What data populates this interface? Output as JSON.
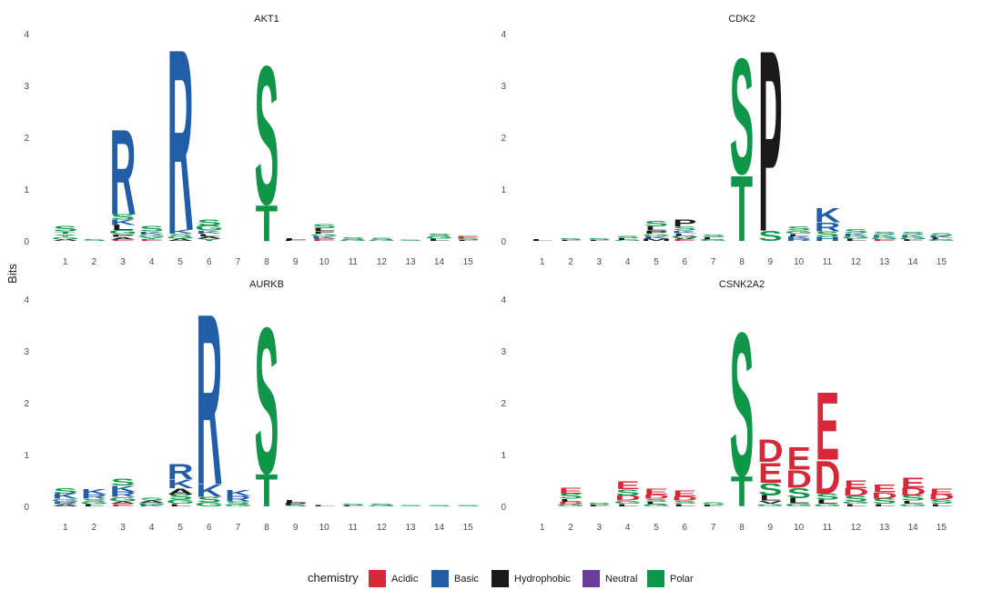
{
  "chart_data": {
    "type": "sequence-logo",
    "ylabel": "Bits",
    "xlabel": "",
    "ylim": [
      0,
      4
    ],
    "y_ticks": [
      0,
      1,
      2,
      3,
      4
    ],
    "positions": [
      1,
      2,
      3,
      4,
      5,
      6,
      7,
      8,
      9,
      10,
      11,
      12,
      13,
      14,
      15
    ],
    "grid": false,
    "legend": {
      "title": "chemistry",
      "placement": "bottom",
      "entries": [
        {
          "label": "Acidic",
          "color": "#d62839"
        },
        {
          "label": "Basic",
          "color": "#225ea8"
        },
        {
          "label": "Hydrophobic",
          "color": "#1a1a1a"
        },
        {
          "label": "Neutral",
          "color": "#6a3d9a"
        },
        {
          "label": "Polar",
          "color": "#109648"
        }
      ]
    },
    "panels": [
      {
        "title": "AKT1",
        "stacks": [
          [
            [
              "S",
              0.1
            ],
            [
              "G",
              0.05
            ],
            [
              "Y",
              0.05
            ],
            [
              "T",
              0.05
            ],
            [
              "A",
              0.03
            ]
          ],
          [
            [
              "S",
              0.03
            ]
          ],
          [
            [
              "R",
              1.7
            ],
            [
              "L",
              0.1
            ],
            [
              "K",
              0.1
            ],
            [
              "S",
              0.1
            ],
            [
              "G",
              0.08
            ],
            [
              "A",
              0.05
            ],
            [
              "P",
              0.05
            ],
            [
              "E",
              0.03
            ]
          ],
          [
            [
              "S",
              0.1
            ],
            [
              "K",
              0.06
            ],
            [
              "G",
              0.05
            ],
            [
              "Y",
              0.04
            ],
            [
              "E",
              0.03
            ]
          ],
          [
            [
              "R",
              3.6
            ],
            [
              "K",
              0.08
            ],
            [
              "S",
              0.06
            ],
            [
              "A",
              0.04
            ],
            [
              "G",
              0.04
            ]
          ],
          [
            [
              "S",
              0.12
            ],
            [
              "G",
              0.1
            ],
            [
              "K",
              0.06
            ],
            [
              "A",
              0.05
            ],
            [
              "L",
              0.05
            ],
            [
              "Y",
              0.04
            ]
          ],
          [],
          [
            [
              "S",
              2.75
            ],
            [
              "T",
              0.72
            ]
          ],
          [
            [
              "L",
              0.03
            ],
            [
              "P",
              0.02
            ]
          ],
          [
            [
              "S",
              0.08
            ],
            [
              "L",
              0.06
            ],
            [
              "K",
              0.05
            ],
            [
              "G",
              0.05
            ],
            [
              "E",
              0.04
            ],
            [
              "F",
              0.05
            ]
          ],
          [
            [
              "S",
              0.06
            ],
            [
              "G",
              0.02
            ]
          ],
          [
            [
              "S",
              0.04
            ],
            [
              "G",
              0.02
            ]
          ],
          [
            [
              "S",
              0.02
            ]
          ],
          [
            [
              "S",
              0.06
            ],
            [
              "G",
              0.05
            ],
            [
              "L",
              0.04
            ]
          ],
          [
            [
              "S",
              0.03
            ],
            [
              "E",
              0.04
            ],
            [
              "L",
              0.02
            ]
          ]
        ]
      },
      {
        "title": "CDK2",
        "stacks": [
          [
            [
              "L",
              0.03
            ]
          ],
          [
            [
              "S",
              0.03
            ],
            [
              "L",
              0.02
            ]
          ],
          [
            [
              "S",
              0.03
            ],
            [
              "L",
              0.02
            ]
          ],
          [
            [
              "S",
              0.05
            ],
            [
              "L",
              0.03
            ],
            [
              "G",
              0.02
            ]
          ],
          [
            [
              "S",
              0.1
            ],
            [
              "L",
              0.08
            ],
            [
              "P",
              0.06
            ],
            [
              "K",
              0.05
            ],
            [
              "G",
              0.05
            ],
            [
              "M",
              0.04
            ]
          ],
          [
            [
              "P",
              0.14
            ],
            [
              "S",
              0.08
            ],
            [
              "L",
              0.05
            ],
            [
              "K",
              0.05
            ],
            [
              "G",
              0.04
            ],
            [
              "E",
              0.03
            ],
            [
              "V",
              0.03
            ]
          ],
          [
            [
              "S",
              0.06
            ],
            [
              "L",
              0.04
            ],
            [
              "G",
              0.03
            ]
          ],
          [
            [
              "S",
              2.3
            ],
            [
              "T",
              1.3
            ]
          ],
          [
            [
              "P",
              3.6
            ],
            [
              "S",
              0.2
            ]
          ],
          [
            [
              "S",
              0.08
            ],
            [
              "K",
              0.05
            ],
            [
              "G",
              0.06
            ],
            [
              "L",
              0.05
            ],
            [
              "R",
              0.04
            ]
          ],
          [
            [
              "K",
              0.28
            ],
            [
              "R",
              0.18
            ],
            [
              "S",
              0.1
            ],
            [
              "H",
              0.08
            ]
          ],
          [
            [
              "S",
              0.08
            ],
            [
              "K",
              0.06
            ],
            [
              "G",
              0.05
            ],
            [
              "L",
              0.04
            ]
          ],
          [
            [
              "S",
              0.06
            ],
            [
              "K",
              0.05
            ],
            [
              "G",
              0.04
            ],
            [
              "E",
              0.03
            ]
          ],
          [
            [
              "S",
              0.06
            ],
            [
              "K",
              0.05
            ],
            [
              "G",
              0.04
            ],
            [
              "L",
              0.03
            ]
          ],
          [
            [
              "S",
              0.06
            ],
            [
              "K",
              0.04
            ],
            [
              "G",
              0.03
            ],
            [
              "L",
              0.03
            ]
          ]
        ]
      },
      {
        "title": "AURKB",
        "stacks": [
          [
            [
              "K",
              0.1
            ],
            [
              "S",
              0.1
            ],
            [
              "G",
              0.06
            ],
            [
              "R",
              0.05
            ],
            [
              "A",
              0.04
            ]
          ],
          [
            [
              "K",
              0.1
            ],
            [
              "R",
              0.08
            ],
            [
              "S",
              0.06
            ],
            [
              "G",
              0.05
            ],
            [
              "L",
              0.04
            ]
          ],
          [
            [
              "S",
              0.14
            ],
            [
              "K",
              0.12
            ],
            [
              "R",
              0.1
            ],
            [
              "G",
              0.08
            ],
            [
              "E",
              0.05
            ],
            [
              "A",
              0.05
            ]
          ],
          [
            [
              "S",
              0.06
            ],
            [
              "G",
              0.04
            ],
            [
              "A",
              0.04
            ],
            [
              "K",
              0.03
            ]
          ],
          [
            [
              "R",
              0.3
            ],
            [
              "K",
              0.18
            ],
            [
              "A",
              0.12
            ],
            [
              "S",
              0.1
            ],
            [
              "G",
              0.08
            ],
            [
              "L",
              0.05
            ]
          ],
          [
            [
              "R",
              3.4
            ],
            [
              "K",
              0.25
            ],
            [
              "S",
              0.1
            ],
            [
              "G",
              0.08
            ]
          ],
          [
            [
              "K",
              0.12
            ],
            [
              "R",
              0.1
            ],
            [
              "S",
              0.06
            ],
            [
              "G",
              0.04
            ]
          ],
          [
            [
              "S",
              2.9
            ],
            [
              "T",
              0.65
            ]
          ],
          [
            [
              "L",
              0.06
            ],
            [
              "P",
              0.04
            ],
            [
              "S",
              0.03
            ]
          ],
          [
            [
              "L",
              0.02
            ]
          ],
          [
            [
              "S",
              0.03
            ],
            [
              "L",
              0.02
            ]
          ],
          [
            [
              "S",
              0.03
            ],
            [
              "G",
              0.02
            ]
          ],
          [
            [
              "S",
              0.02
            ]
          ],
          [
            [
              "S",
              0.02
            ]
          ],
          [
            [
              "S",
              0.02
            ]
          ]
        ]
      },
      {
        "title": "CSNK2A2",
        "stacks": [
          [],
          [
            [
              "E",
              0.12
            ],
            [
              "S",
              0.1
            ],
            [
              "L",
              0.06
            ],
            [
              "D",
              0.05
            ],
            [
              "G",
              0.04
            ]
          ],
          [
            [
              "S",
              0.05
            ],
            [
              "L",
              0.03
            ]
          ],
          [
            [
              "E",
              0.15
            ],
            [
              "D",
              0.1
            ],
            [
              "S",
              0.12
            ],
            [
              "G",
              0.06
            ],
            [
              "L",
              0.05
            ]
          ],
          [
            [
              "E",
              0.12
            ],
            [
              "D",
              0.08
            ],
            [
              "S",
              0.06
            ],
            [
              "L",
              0.05
            ],
            [
              "G",
              0.04
            ]
          ],
          [
            [
              "E",
              0.12
            ],
            [
              "D",
              0.08
            ],
            [
              "S",
              0.06
            ],
            [
              "L",
              0.05
            ]
          ],
          [
            [
              "S",
              0.06
            ],
            [
              "L",
              0.03
            ]
          ],
          [
            [
              "S",
              2.85
            ],
            [
              "T",
              0.6
            ]
          ],
          [
            [
              "D",
              0.45
            ],
            [
              "E",
              0.4
            ],
            [
              "S",
              0.25
            ],
            [
              "L",
              0.1
            ],
            [
              "V",
              0.06
            ],
            [
              "G",
              0.05
            ]
          ],
          [
            [
              "E",
              0.45
            ],
            [
              "D",
              0.35
            ],
            [
              "S",
              0.2
            ],
            [
              "L",
              0.1
            ],
            [
              "G",
              0.06
            ]
          ],
          [
            [
              "E",
              1.35
            ],
            [
              "D",
              0.65
            ],
            [
              "S",
              0.12
            ],
            [
              "L",
              0.08
            ],
            [
              "G",
              0.05
            ]
          ],
          [
            [
              "D",
              0.15
            ],
            [
              "E",
              0.15
            ],
            [
              "S",
              0.1
            ],
            [
              "L",
              0.05
            ],
            [
              "G",
              0.05
            ]
          ],
          [
            [
              "E",
              0.15
            ],
            [
              "D",
              0.12
            ],
            [
              "S",
              0.1
            ],
            [
              "L",
              0.05
            ]
          ],
          [
            [
              "E",
              0.2
            ],
            [
              "D",
              0.15
            ],
            [
              "S",
              0.1
            ],
            [
              "L",
              0.06
            ],
            [
              "G",
              0.05
            ]
          ],
          [
            [
              "E",
              0.12
            ],
            [
              "D",
              0.1
            ],
            [
              "S",
              0.08
            ],
            [
              "L",
              0.05
            ]
          ]
        ]
      }
    ]
  }
}
